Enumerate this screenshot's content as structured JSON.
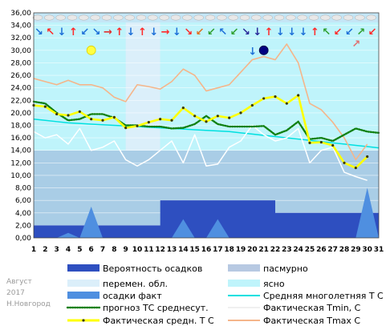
{
  "chart_data": {
    "type": "line",
    "x": [
      1,
      2,
      3,
      4,
      5,
      6,
      7,
      8,
      9,
      10,
      11,
      12,
      13,
      14,
      15,
      16,
      17,
      18,
      19,
      20,
      21,
      22,
      23,
      24,
      25,
      26,
      27,
      28,
      29,
      30,
      31
    ],
    "xlim": [
      1,
      31
    ],
    "ylim": [
      0,
      36
    ],
    "ytick_step": 2,
    "grid": true,
    "sky": [
      {
        "name": "ясно",
        "color": "#bff4fb"
      },
      {
        "name": "перемен. обл.",
        "color": "#dbeffa"
      },
      {
        "name": "пасмурно",
        "color": "#b7c9e2"
      }
    ],
    "sky_segments": [
      {
        "from": 1,
        "to": 9,
        "level": 0
      },
      {
        "from": 9,
        "to": 12,
        "level": 1
      },
      {
        "from": 12,
        "to": 22,
        "level": 0
      },
      {
        "from": 22,
        "to": 31,
        "level": 0
      }
    ],
    "sky_band_ylim": [
      0,
      36
    ],
    "lower_band_ylim": [
      0,
      14
    ],
    "series": [
      {
        "name": "Вероятность осадков",
        "kind": "step-area",
        "color": "#2e4fc0",
        "values": [
          2,
          2,
          2,
          2,
          2,
          2,
          2,
          2,
          2,
          2,
          2,
          6,
          6,
          6,
          6,
          6,
          6,
          6,
          6,
          6,
          6,
          4,
          4,
          4,
          4,
          4,
          4,
          4,
          4,
          4,
          4
        ]
      },
      {
        "name": "осадки факт",
        "kind": "area",
        "color": "#4f8fe0",
        "values": [
          0,
          0,
          0,
          0.8,
          0,
          5,
          0,
          0,
          0,
          0,
          0,
          0,
          0,
          3,
          0,
          0,
          3,
          0,
          0,
          0,
          0,
          0,
          0,
          0,
          0,
          0,
          0,
          0,
          0,
          8,
          0
        ]
      },
      {
        "name": "Средняя многолетняя Т С",
        "kind": "line",
        "color": "#00e0e0",
        "values": [
          19.0,
          18.8,
          18.6,
          18.4,
          18.3,
          18.2,
          18.1,
          18.0,
          17.9,
          17.8,
          17.7,
          17.6,
          17.5,
          17.4,
          17.3,
          17.2,
          17.1,
          17.0,
          16.8,
          16.6,
          16.4,
          16.2,
          16.0,
          15.8,
          15.6,
          15.4,
          15.2,
          15.0,
          14.8,
          14.6,
          14.4
        ]
      },
      {
        "name": "Фактическая Tmin, C",
        "kind": "line",
        "color": "#ffffff",
        "values": [
          17.0,
          16.0,
          16.5,
          15.0,
          17.5,
          14.0,
          14.5,
          15.5,
          12.5,
          11.5,
          12.5,
          14.0,
          15.5,
          12.0,
          16.5,
          11.5,
          11.8,
          14.5,
          15.5,
          18.0,
          16.5,
          15.5,
          16.0,
          17.5,
          12.0,
          14.0,
          14.5,
          10.5,
          9.8,
          9.2,
          null
        ]
      },
      {
        "name": "Фактическая Tmax C",
        "kind": "line",
        "color": "#f5b58a",
        "values": [
          25.5,
          25.0,
          24.5,
          25.2,
          24.5,
          24.5,
          24.0,
          22.5,
          21.8,
          24.5,
          24.2,
          23.8,
          25.0,
          27.0,
          26.0,
          23.5,
          24.0,
          24.5,
          26.5,
          28.5,
          29.0,
          28.5,
          31.0,
          28.0,
          21.5,
          20.5,
          18.5,
          16.0,
          12.5,
          15.0,
          null
        ]
      },
      {
        "name": "прогноз ТС среднесут.",
        "kind": "line-dotted",
        "color": "#108010",
        "values": [
          21.8,
          21.5,
          20.0,
          18.8,
          19.0,
          19.8,
          19.8,
          19.2,
          18.0,
          18.0,
          17.8,
          17.8,
          17.5,
          17.6,
          18.2,
          19.5,
          18.2,
          17.8,
          17.8,
          17.8,
          17.9,
          16.5,
          17.2,
          18.6,
          15.8,
          16.0,
          15.5,
          16.5,
          17.5,
          17.0,
          16.8
        ]
      },
      {
        "name": "Фактическая средн. Т С",
        "kind": "line-markers",
        "color": "#ffff00",
        "values": [
          21.2,
          21.0,
          19.8,
          19.6,
          20.2,
          19.0,
          18.8,
          19.3,
          17.6,
          17.9,
          18.5,
          19.0,
          18.8,
          20.8,
          19.5,
          18.6,
          19.5,
          19.2,
          20.0,
          21.2,
          22.3,
          22.6,
          21.5,
          22.8,
          15.2,
          15.3,
          14.8,
          12.0,
          11.2,
          13.0,
          null
        ]
      }
    ],
    "weather_icons": [
      {
        "day": 1,
        "arrow": "↘",
        "arrow_color": "#1e70d8"
      },
      {
        "day": 2,
        "arrow": "↖",
        "arrow_color": "#ff2a2a"
      },
      {
        "day": 3,
        "arrow": "↓",
        "arrow_color": "#1e70d8"
      },
      {
        "day": 4,
        "arrow": "↑",
        "arrow_color": "#ff2a2a"
      },
      {
        "day": 5,
        "arrow": "↙",
        "arrow_color": "#1e70d8"
      },
      {
        "day": 6,
        "arrow": "↘",
        "arrow_color": "#1e70d8"
      },
      {
        "day": 7,
        "arrow": "→",
        "arrow_color": "#e03030"
      },
      {
        "day": 8,
        "arrow": "↑",
        "arrow_color": "#ff2a2a"
      },
      {
        "day": 9,
        "arrow": "↓",
        "arrow_color": "#1e70d8"
      },
      {
        "day": 10,
        "arrow": "↑",
        "arrow_color": "#ff2a2a"
      },
      {
        "day": 11,
        "arrow": "↓",
        "arrow_color": "#1e70d8"
      },
      {
        "day": 12,
        "arrow": "→",
        "arrow_color": "#ff2a2a"
      },
      {
        "day": 13,
        "arrow": "↓",
        "arrow_color": "#1e70d8"
      },
      {
        "day": 14,
        "arrow": "↘",
        "arrow_color": "#ff2a2a"
      },
      {
        "day": 15,
        "arrow": "↙",
        "arrow_color": "#e07020"
      },
      {
        "day": 16,
        "arrow": "↙",
        "arrow_color": "#30a030"
      },
      {
        "day": 17,
        "arrow": "↖",
        "arrow_color": "#1e70d8"
      },
      {
        "day": 18,
        "arrow": "↙",
        "arrow_color": "#30a030"
      },
      {
        "day": 19,
        "arrow": "↘",
        "arrow_color": "#2a2a9a"
      },
      {
        "day": 20,
        "arrow": "↓",
        "arrow_color": "#2a2a9a"
      },
      {
        "day": 21,
        "arrow": "↑",
        "arrow_color": "#ff2a2a"
      },
      {
        "day": 22,
        "arrow": "↓",
        "arrow_color": "#1e70d8"
      },
      {
        "day": 23,
        "arrow": "↓",
        "arrow_color": "#1e70d8"
      },
      {
        "day": 24,
        "arrow": "↓",
        "arrow_color": "#1e70d8"
      },
      {
        "day": 25,
        "arrow": "↑",
        "arrow_color": "#ff2a2a"
      },
      {
        "day": 26,
        "arrow": "↖",
        "arrow_color": "#30a030"
      },
      {
        "day": 27,
        "arrow": "↙",
        "arrow_color": "#ff2a2a"
      },
      {
        "day": 28,
        "arrow": "↙",
        "arrow_color": "#1e70d8"
      },
      {
        "day": 29,
        "arrow": "↗",
        "arrow_color": "#30a030"
      },
      {
        "day": 30,
        "arrow": "↙",
        "arrow_color": "#ff2a2a"
      }
    ],
    "extra_arrows": [
      {
        "day": 20,
        "level": 29.8,
        "arrow": "↓",
        "color": "#1e70d8"
      },
      {
        "day": 29,
        "level": 31.0,
        "arrow": "↗",
        "color": "#e07070"
      }
    ],
    "moon_phases": [
      {
        "day": 6,
        "phase": "full",
        "color": "#ffff40"
      },
      {
        "day": 21,
        "phase": "new",
        "color": "#000080"
      }
    ],
    "legend": [
      {
        "label": "Вероятность осадков",
        "swatch": "bar",
        "color": "#2e4fc0"
      },
      {
        "label": "пасмурно",
        "swatch": "bar",
        "color": "#b7c9e2"
      },
      {
        "label": "перемен. обл.",
        "swatch": "bar",
        "color": "#dbeffa"
      },
      {
        "label": "ясно",
        "swatch": "bar",
        "color": "#bff4fb"
      },
      {
        "label": "осадки факт",
        "swatch": "bar",
        "color": "#4f8fe0"
      },
      {
        "label": "Средняя многолетняя Т С",
        "swatch": "line",
        "color": "#00e0e0"
      },
      {
        "label": "прогноз ТС среднесут.",
        "swatch": "dotted",
        "color": "#108010"
      },
      {
        "label": "Фактическая Tmin, C",
        "swatch": "line",
        "color": "#f0f0f0"
      },
      {
        "label": "Фактическая средн. Т С",
        "swatch": "marker",
        "color": "#ffff00"
      },
      {
        "label": "Фактическая Tmax C",
        "swatch": "line",
        "color": "#f5b58a"
      }
    ],
    "annotations": [
      "Август",
      "2017",
      "Н.Новгород"
    ]
  }
}
